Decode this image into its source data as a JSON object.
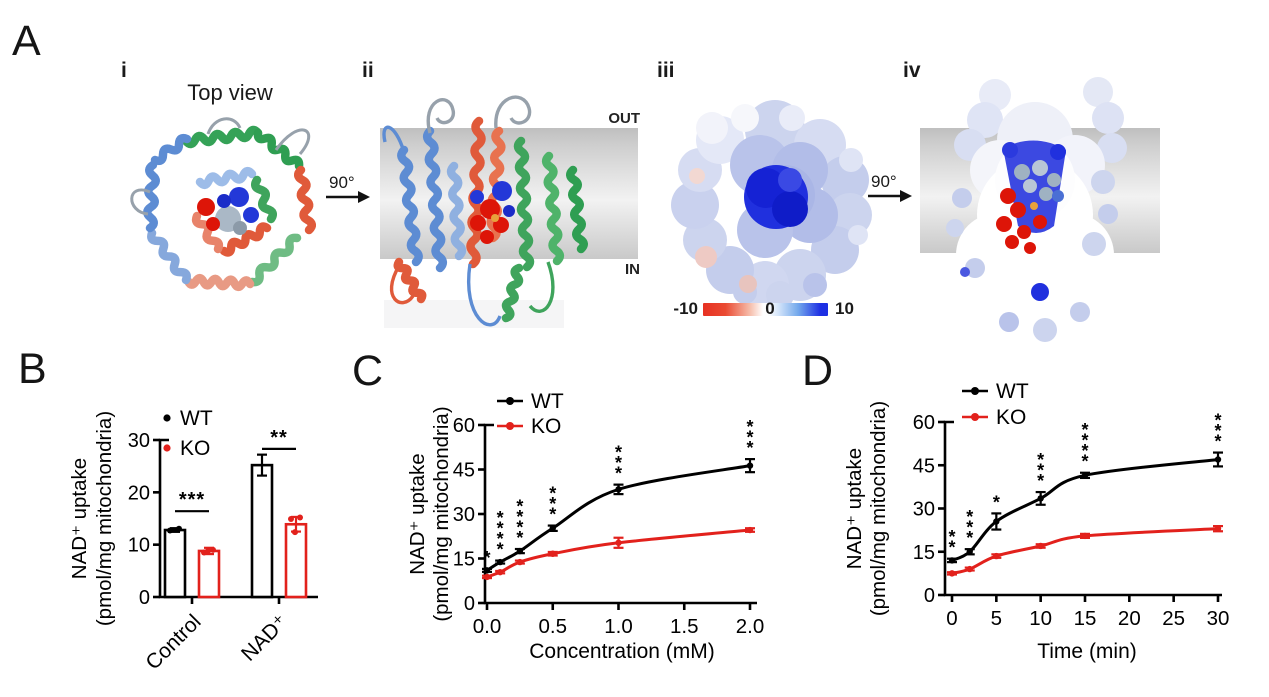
{
  "panelA": {
    "label": "A",
    "i": {
      "label": "i",
      "title": "Top view"
    },
    "rotation1": "90°",
    "ii": {
      "label": "ii",
      "out": "OUT",
      "in": "IN"
    },
    "iii": {
      "label": "iii",
      "colorbar_min": "-10",
      "colorbar_mid": "0",
      "colorbar_max": "10"
    },
    "rotation2": "90°",
    "iv": {
      "label": "iv"
    },
    "colors": {
      "ribbon_green": "#35a257",
      "ribbon_blue": "#5d8cd3",
      "ribbon_salmon": "#e05a3a",
      "loop_gray": "#97a1ab",
      "sphere_red": "#dd1508",
      "sphere_blue": "#2338d8",
      "sphere_gray": "#aab8c6",
      "surface_pale_blue": "#ccd4ee",
      "surface_deep_blue": "#2030de",
      "membrane_gray": "#c9c9c9",
      "colorbar_red": "#e73122",
      "colorbar_blue": "#1d2fe3"
    }
  },
  "chart_data": [
    {
      "panel": "B",
      "type": "bar",
      "ylabel": [
        "NAD⁺ uptake",
        "(pmol/mg mitochondria)"
      ],
      "ylim": [
        0,
        30
      ],
      "yticks": [
        0,
        10,
        20,
        30
      ],
      "categories": [
        "Control",
        "NAD⁺"
      ],
      "legend": [
        {
          "name": "WT",
          "color": "#000000"
        },
        {
          "name": "KO",
          "color": "#e2211c"
        }
      ],
      "series": [
        {
          "name": "WT",
          "color": "#000000",
          "values": [
            12.8,
            25.2
          ],
          "errors": [
            0.35,
            2.0
          ],
          "points": [
            [
              12.7,
              13.05
            ],
            []
          ]
        },
        {
          "name": "KO",
          "color": "#e2211c",
          "values": [
            8.8,
            13.9
          ],
          "errors": [
            0.6,
            1.4
          ],
          "points": [
            [
              8.5,
              9.0,
              8.8
            ],
            [
              14.9,
              15.2,
              12.4
            ]
          ]
        }
      ],
      "significance": [
        {
          "group": "Control",
          "label": "***",
          "line_height": 16.4
        },
        {
          "group": "NAD⁺",
          "label": "**",
          "line_height": 28.3
        }
      ]
    },
    {
      "panel": "C",
      "type": "line",
      "xlabel": "Concentration (mM)",
      "ylabel": [
        "NAD⁺ uptake",
        "(pmol/mg mitochondria)"
      ],
      "xlim": [
        0,
        2
      ],
      "ylim": [
        0,
        60
      ],
      "yticks": [
        0,
        15,
        30,
        45,
        60
      ],
      "xticks": [
        {
          "v": 0,
          "label": "0.0"
        },
        {
          "v": 0.5,
          "label": "0.5"
        },
        {
          "v": 1,
          "label": "1.0"
        },
        {
          "v": 1.5,
          "label": "1.5"
        },
        {
          "v": 2,
          "label": "2.0"
        }
      ],
      "legend": [
        {
          "name": "WT",
          "color": "#000000"
        },
        {
          "name": "KO",
          "color": "#e2211c"
        }
      ],
      "series": [
        {
          "name": "WT",
          "color": "#000000",
          "x": [
            0,
            0.1,
            0.25,
            0.5,
            1,
            2
          ],
          "y": [
            11,
            13.8,
            17.5,
            25.2,
            38.3,
            46.3
          ],
          "errors": [
            0.5,
            0.5,
            0.7,
            0.9,
            1.6,
            2.2
          ]
        },
        {
          "name": "KO",
          "color": "#e2211c",
          "x": [
            0,
            0.1,
            0.25,
            0.5,
            1,
            2
          ],
          "y": [
            8.8,
            10.4,
            13.8,
            16.6,
            20.3,
            24.6
          ],
          "errors": [
            0.4,
            0.4,
            0.5,
            0.6,
            1.7,
            0.6
          ]
        }
      ],
      "significance": [
        {
          "x": 0,
          "label": "*"
        },
        {
          "x": 0.1,
          "label": "****"
        },
        {
          "x": 0.25,
          "label": "****"
        },
        {
          "x": 0.5,
          "label": "***"
        },
        {
          "x": 1,
          "label": "***"
        },
        {
          "x": 2,
          "label": "***"
        }
      ]
    },
    {
      "panel": "D",
      "type": "line",
      "xlabel": "Time (min)",
      "ylabel": [
        "NAD⁺ uptake",
        "(pmol/mg mitochondria)"
      ],
      "xlim": [
        0,
        30
      ],
      "ylim": [
        0,
        60
      ],
      "yticks": [
        0,
        15,
        30,
        45,
        60
      ],
      "xticks": [
        {
          "v": 0,
          "label": "0"
        },
        {
          "v": 5,
          "label": "5"
        },
        {
          "v": 10,
          "label": "10"
        },
        {
          "v": 15,
          "label": "15"
        },
        {
          "v": 20,
          "label": "20"
        },
        {
          "v": 25,
          "label": "25"
        },
        {
          "v": 30,
          "label": "30"
        }
      ],
      "legend": [
        {
          "name": "WT",
          "color": "#000000"
        },
        {
          "name": "KO",
          "color": "#e2211c"
        }
      ],
      "series": [
        {
          "name": "WT",
          "color": "#000000",
          "x": [
            0,
            2,
            5,
            10,
            15,
            30
          ],
          "y": [
            12,
            15,
            25.5,
            33.5,
            41.5,
            47
          ],
          "errors": [
            0.6,
            0.9,
            2.8,
            2.2,
            0.9,
            2.4
          ]
        },
        {
          "name": "KO",
          "color": "#e2211c",
          "x": [
            0,
            2,
            5,
            10,
            15,
            30
          ],
          "y": [
            7.5,
            9,
            13.5,
            17,
            20.5,
            23
          ],
          "errors": [
            0.4,
            0.5,
            0.6,
            0.6,
            0.7,
            0.9
          ]
        }
      ],
      "significance": [
        {
          "x": 0,
          "label": "**"
        },
        {
          "x": 2,
          "label": "***"
        },
        {
          "x": 5,
          "label": "*"
        },
        {
          "x": 10,
          "label": "***"
        },
        {
          "x": 15,
          "label": "****"
        },
        {
          "x": 30,
          "label": "***"
        }
      ]
    }
  ]
}
